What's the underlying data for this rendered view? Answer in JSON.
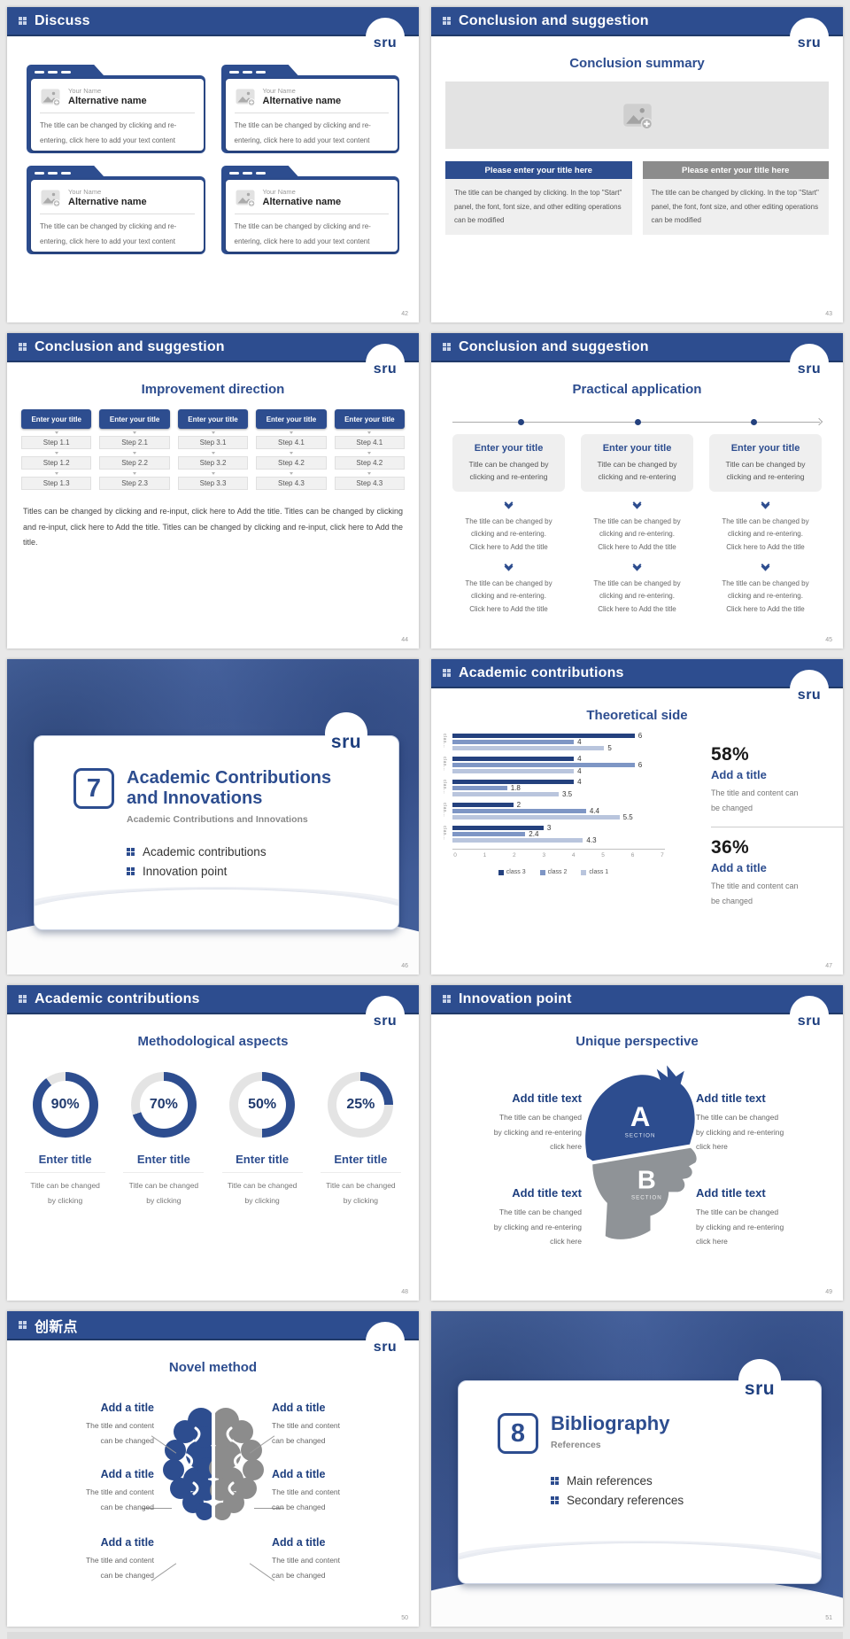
{
  "brand": {
    "logo_text": "sru"
  },
  "theme": {
    "primary": "#2d4d8f",
    "primary_dark": "#203a69",
    "logo_blue": "#1e3f7f",
    "gray_header": "#8c8c8c",
    "donut_track": "#e4e4e4",
    "page_bg": "#e8e8e8"
  },
  "chart_data": {
    "type": "bar",
    "orientation": "horizontal",
    "title": "Theoretical side",
    "categories": [
      "clas…",
      "clas…",
      "clas…",
      "clas…",
      "clas…"
    ],
    "series": [
      {
        "name": "class 3",
        "color": "#24417e",
        "values": [
          6,
          4,
          4,
          2,
          3
        ]
      },
      {
        "name": "class 2",
        "color": "#7e96c5",
        "values": [
          4,
          6,
          1.8,
          4.4,
          2.4
        ]
      },
      {
        "name": "class 1",
        "color": "#b9c5dd",
        "values": [
          5,
          4,
          3.5,
          5.5,
          4.3
        ]
      }
    ],
    "xlim": [
      0,
      7
    ],
    "xticks": [
      0,
      1,
      2,
      3,
      4,
      5,
      6,
      7
    ],
    "value_labels": true,
    "legend_position": "bottom",
    "grid": false
  },
  "slides": {
    "discuss": {
      "header": "Discuss",
      "page_num": "42",
      "cards": [
        {
          "name_label": "Your Name",
          "alt_name": "Alternative name",
          "body": "The title can be changed by clicking and re-entering, click here to add your text content"
        },
        {
          "name_label": "Your Name",
          "alt_name": "Alternative name",
          "body": "The title can be changed by clicking and re-entering, click here to add your text content"
        },
        {
          "name_label": "Your Name",
          "alt_name": "Alternative name",
          "body": "The title can be changed by clicking and re-entering, click here to add your text content"
        },
        {
          "name_label": "Your Name",
          "alt_name": "Alternative name",
          "body": "The title can be changed by clicking and re-entering, click here to add your text content"
        }
      ]
    },
    "conclusion_summary": {
      "header": "Conclusion and suggestion",
      "page_num": "43",
      "title": "Conclusion summary",
      "columns": [
        {
          "title": "Please enter your title here",
          "body": "The title can be changed by clicking. In the top \"Start\" panel, the font, font size, and other editing operations can be modified"
        },
        {
          "title": "Please enter your title here",
          "body": "The title can be changed by clicking. In the top \"Start\" panel, the font, font size, and other editing operations can be modified"
        }
      ]
    },
    "improvement_direction": {
      "header": "Conclusion and suggestion",
      "page_num": "44",
      "title": "Improvement direction",
      "columns": [
        {
          "title": "Enter your title",
          "steps": [
            "Step 1.1",
            "Step 1.2",
            "Step 1.3"
          ]
        },
        {
          "title": "Enter your title",
          "steps": [
            "Step 2.1",
            "Step 2.2",
            "Step 2.3"
          ]
        },
        {
          "title": "Enter your title",
          "steps": [
            "Step 3.1",
            "Step 3.2",
            "Step 3.3"
          ]
        },
        {
          "title": "Enter your title",
          "steps": [
            "Step 4.1",
            "Step 4.2",
            "Step 4.3"
          ]
        },
        {
          "title": "Enter your title",
          "steps": [
            "Step 4.1",
            "Step 4.2",
            "Step 4.3"
          ]
        }
      ],
      "paragraph": "Titles can be changed by clicking and re-input, click here to Add the title. Titles can be changed by clicking and re-input, click here to Add the title. Titles can be changed by clicking and re-input, click here to Add the title."
    },
    "practical_application": {
      "header": "Conclusion and suggestion",
      "page_num": "45",
      "title": "Practical application",
      "columns": [
        {
          "title": "Enter your title",
          "subtitle": "Title can be changed by\nclicking and re-entering",
          "steps": [
            "The title can be changed by\nclicking and re-entering.\nClick here to Add the title",
            "The title can be changed by\nclicking and re-entering.\nClick here to Add the title"
          ]
        },
        {
          "title": "Enter your title",
          "subtitle": "Title can be changed by\nclicking and re-entering",
          "steps": [
            "The title can be changed by\nclicking and re-entering.\nClick here to Add the title",
            "The title can be changed by\nclicking and re-entering.\nClick here to Add the title"
          ]
        },
        {
          "title": "Enter your title",
          "subtitle": "Title can be changed by\nclicking and re-entering",
          "steps": [
            "The title can be changed by\nclicking and re-entering.\nClick here to Add the title",
            "The title can be changed by\nclicking and re-entering.\nClick here to Add the title"
          ]
        }
      ]
    },
    "section_7": {
      "page_num": "46",
      "number": "7",
      "title": "Academic Contributions and Innovations",
      "subtitle": "Academic Contributions and Innovations",
      "bullets": [
        "Academic contributions",
        "Innovation point"
      ]
    },
    "theoretical_side": {
      "header": "Academic contributions",
      "page_num": "47",
      "title": "Theoretical side",
      "stats": [
        {
          "percent": "58%",
          "title": "Add a title",
          "body": "The title and content can\nbe changed"
        },
        {
          "percent": "36%",
          "title": "Add a title",
          "body": "The title and content can\nbe changed"
        }
      ]
    },
    "methodological_aspects": {
      "header": "Academic contributions",
      "page_num": "48",
      "title": "Methodological aspects",
      "items": [
        {
          "pct": 90,
          "pct_label": "90%",
          "title": "Enter title",
          "body": "Title can be changed\nby clicking"
        },
        {
          "pct": 70,
          "pct_label": "70%",
          "title": "Enter title",
          "body": "Title can be changed\nby clicking"
        },
        {
          "pct": 50,
          "pct_label": "50%",
          "title": "Enter title",
          "body": "Title can be changed\nby clicking"
        },
        {
          "pct": 25,
          "pct_label": "25%",
          "title": "Enter title",
          "body": "Title can be changed\nby clicking"
        }
      ]
    },
    "unique_perspective": {
      "header": "Innovation point",
      "page_num": "49",
      "title": "Unique perspective",
      "head_sections": [
        {
          "letter": "A",
          "label": "SECTION"
        },
        {
          "letter": "B",
          "label": "SECTION"
        }
      ],
      "blocks": [
        {
          "title": "Add title text",
          "body": "The title can be changed\nby clicking and re-entering\nclick here"
        },
        {
          "title": "Add title text",
          "body": "The title can be changed\nby clicking and re-entering\nclick here"
        },
        {
          "title": "Add title text",
          "body": "The title can be changed\nby clicking and re-entering\nclick here"
        },
        {
          "title": "Add title text",
          "body": "The title can be changed\nby clicking and re-entering\nclick here"
        }
      ]
    },
    "novel_method": {
      "header": "创新点",
      "page_num": "50",
      "title": "Novel method",
      "blocks": [
        {
          "title": "Add a title",
          "body": "The title and content\ncan be changed"
        },
        {
          "title": "Add a title",
          "body": "The title and content\ncan be changed"
        },
        {
          "title": "Add a title",
          "body": "The title and content\ncan be changed"
        },
        {
          "title": "Add a title",
          "body": "The title and content\ncan be changed"
        },
        {
          "title": "Add a title",
          "body": "The title and content\ncan be changed"
        },
        {
          "title": "Add a title",
          "body": "The title and content\ncan be changed"
        }
      ]
    },
    "bibliography": {
      "page_num": "51",
      "number": "8",
      "title": "Bibliography",
      "subtitle": "References",
      "bullets": [
        "Main references",
        "Secondary references"
      ]
    }
  }
}
